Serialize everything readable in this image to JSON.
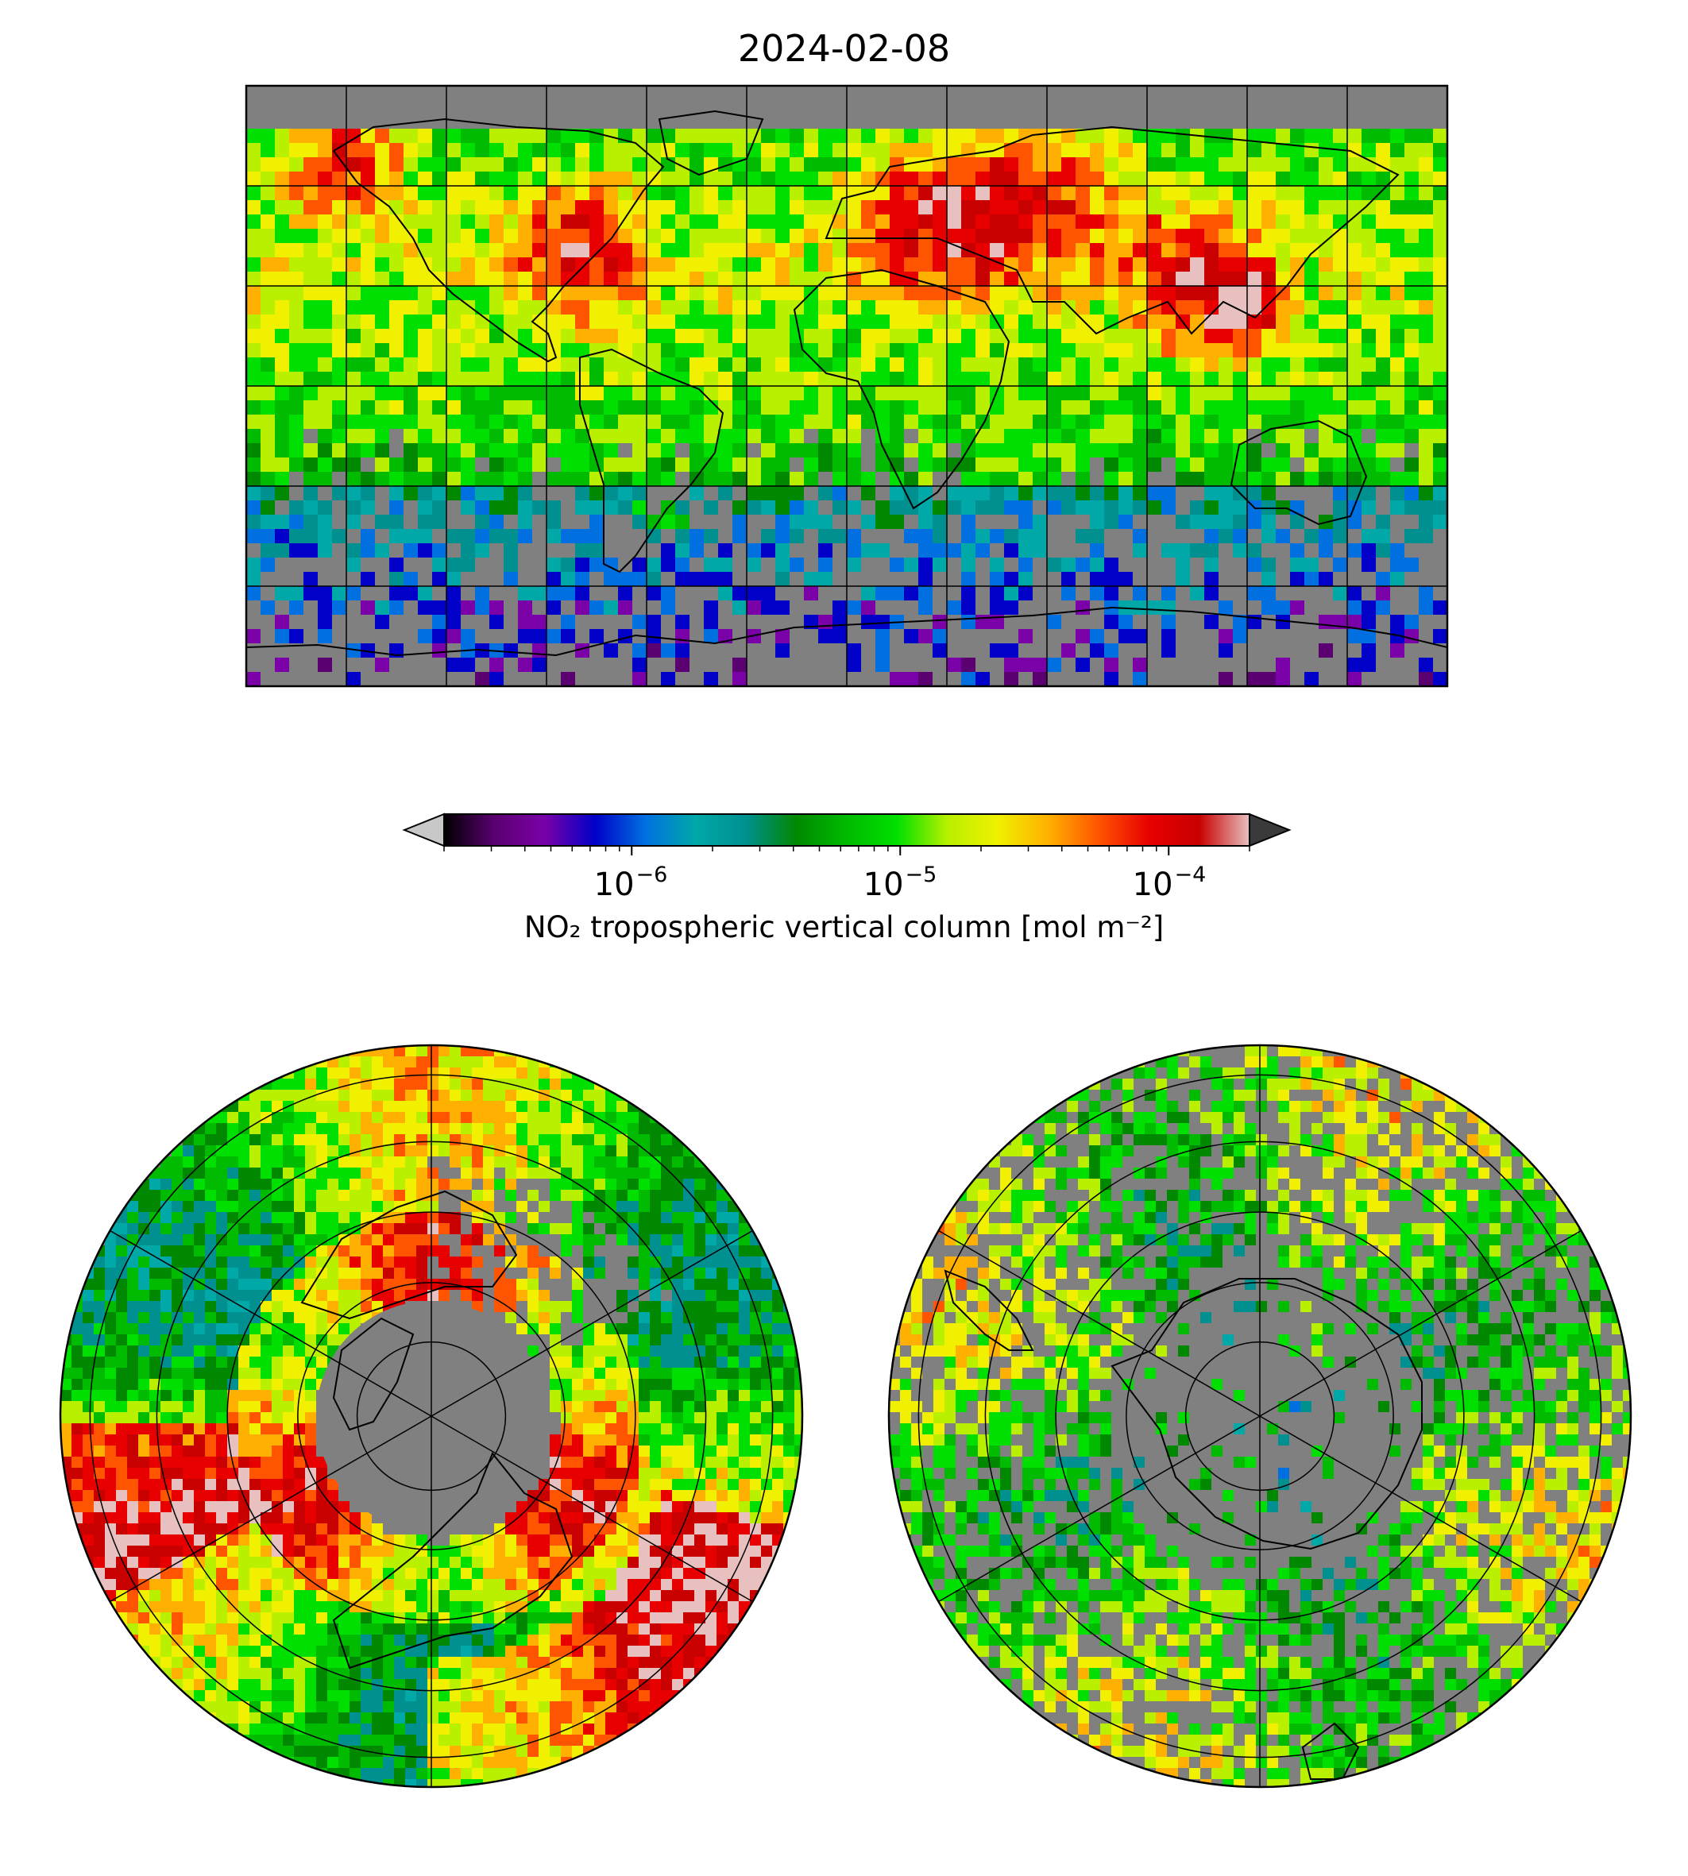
{
  "figure": {
    "title": "2024-02-08"
  },
  "colorbar": {
    "label": "NO₂ tropospheric vertical column [mol m⁻²]",
    "scale": "log",
    "range": [
      2e-07,
      0.0002
    ],
    "ticks": [
      {
        "base": "10",
        "exponent": "−6",
        "value": 1e-06
      },
      {
        "base": "10",
        "exponent": "−5",
        "value": 1e-05
      },
      {
        "base": "10",
        "exponent": "−4",
        "value": 0.0001
      }
    ],
    "extend": "both",
    "under_color": "#c8c8c8",
    "over_color": "#3a3a3a",
    "colormap_stops": [
      "#000000",
      "#5a0070",
      "#7a00a8",
      "#0000c8",
      "#0070e0",
      "#00a8a8",
      "#009090",
      "#008800",
      "#00bb00",
      "#00e000",
      "#b8f000",
      "#f0f000",
      "#ffb000",
      "#ff5500",
      "#e80000",
      "#c80000",
      "#e8c0c0"
    ]
  },
  "maps": [
    {
      "name": "global-map",
      "projection": "plate-carree",
      "gridlines": true,
      "missing_color": "#808080"
    },
    {
      "name": "north-polar-map",
      "projection": "north-polar-stereographic",
      "gridlines": true
    },
    {
      "name": "south-polar-map",
      "projection": "south-polar-stereographic",
      "gridlines": true
    }
  ]
}
